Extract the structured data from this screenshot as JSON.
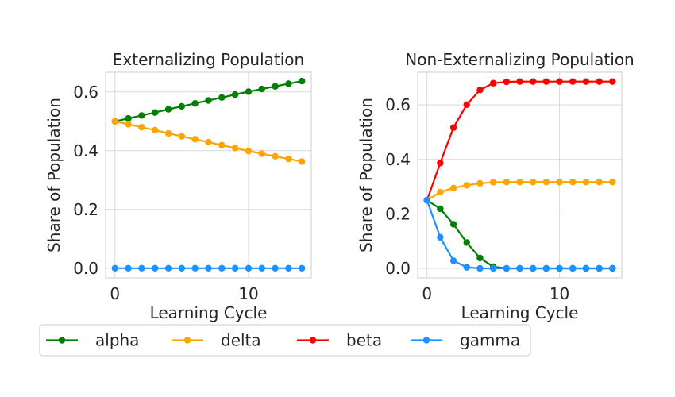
{
  "chart_data": [
    {
      "type": "line",
      "title": "Externalizing Population",
      "xlabel": "Learning Cycle",
      "ylabel": "Share of Population",
      "xlim": [
        -0.7,
        14.7
      ],
      "ylim": [
        -0.033,
        0.667
      ],
      "xticks": [
        0,
        10
      ],
      "xtick_labels": [
        "0",
        "10"
      ],
      "yticks": [
        0.0,
        0.2,
        0.4,
        0.6
      ],
      "ytick_labels": [
        "0.0",
        "0.2",
        "0.4",
        "0.6"
      ],
      "grid": true,
      "x": [
        0,
        1,
        2,
        3,
        4,
        5,
        6,
        7,
        8,
        9,
        10,
        11,
        12,
        13,
        14
      ],
      "series": [
        {
          "name": "alpha",
          "color": "#008000",
          "values": [
            0.5,
            0.51,
            0.52,
            0.53,
            0.541,
            0.551,
            0.561,
            0.571,
            0.581,
            0.591,
            0.601,
            0.61,
            0.619,
            0.628,
            0.637
          ]
        },
        {
          "name": "delta",
          "color": "#FFA500",
          "values": [
            0.5,
            0.49,
            0.48,
            0.47,
            0.459,
            0.449,
            0.439,
            0.429,
            0.419,
            0.409,
            0.399,
            0.39,
            0.381,
            0.372,
            0.363
          ]
        },
        {
          "name": "gamma",
          "color": "#1E90FF",
          "values": [
            0,
            0,
            0,
            0,
            0,
            0,
            0,
            0,
            0,
            0,
            0,
            0,
            0,
            0,
            0
          ]
        }
      ]
    },
    {
      "type": "line",
      "title": "Non-Externalizing Population",
      "xlabel": "Learning Cycle",
      "ylabel": "Share of Population",
      "xlim": [
        -0.7,
        14.7
      ],
      "ylim": [
        -0.035,
        0.72
      ],
      "xticks": [
        0,
        10
      ],
      "xtick_labels": [
        "0",
        "10"
      ],
      "yticks": [
        0.0,
        0.2,
        0.4,
        0.6
      ],
      "ytick_labels": [
        "0.0",
        "0.2",
        "0.4",
        "0.6"
      ],
      "grid": true,
      "x": [
        0,
        1,
        2,
        3,
        4,
        5,
        6,
        7,
        8,
        9,
        10,
        11,
        12,
        13,
        14
      ],
      "series": [
        {
          "name": "beta",
          "color": "#FF0000",
          "values": [
            0.25,
            0.387,
            0.517,
            0.601,
            0.655,
            0.68,
            0.685,
            0.686,
            0.686,
            0.686,
            0.686,
            0.686,
            0.686,
            0.686,
            0.686
          ]
        },
        {
          "name": "delta",
          "color": "#FFA500",
          "values": [
            0.25,
            0.28,
            0.295,
            0.305,
            0.312,
            0.316,
            0.317,
            0.317,
            0.317,
            0.317,
            0.317,
            0.317,
            0.317,
            0.317,
            0.317
          ]
        },
        {
          "name": "alpha",
          "color": "#008000",
          "values": [
            0.25,
            0.219,
            0.162,
            0.095,
            0.038,
            0.006,
            0.0,
            0.0,
            0.0,
            0.0,
            0.0,
            0.0,
            0.0,
            0.0,
            0.0
          ]
        },
        {
          "name": "gamma",
          "color": "#1E90FF",
          "values": [
            0.25,
            0.114,
            0.028,
            0.004,
            0.0,
            0.0,
            0.0,
            0.0,
            0.0,
            0.0,
            0.0,
            0.0,
            0.0,
            0.0,
            0.0
          ]
        }
      ]
    }
  ],
  "legend": {
    "placement": "bottom",
    "items": [
      {
        "label": "alpha",
        "color": "#008000"
      },
      {
        "label": "delta",
        "color": "#FFA500"
      },
      {
        "label": "beta",
        "color": "#FF0000"
      },
      {
        "label": "gamma",
        "color": "#1E90FF"
      }
    ]
  }
}
